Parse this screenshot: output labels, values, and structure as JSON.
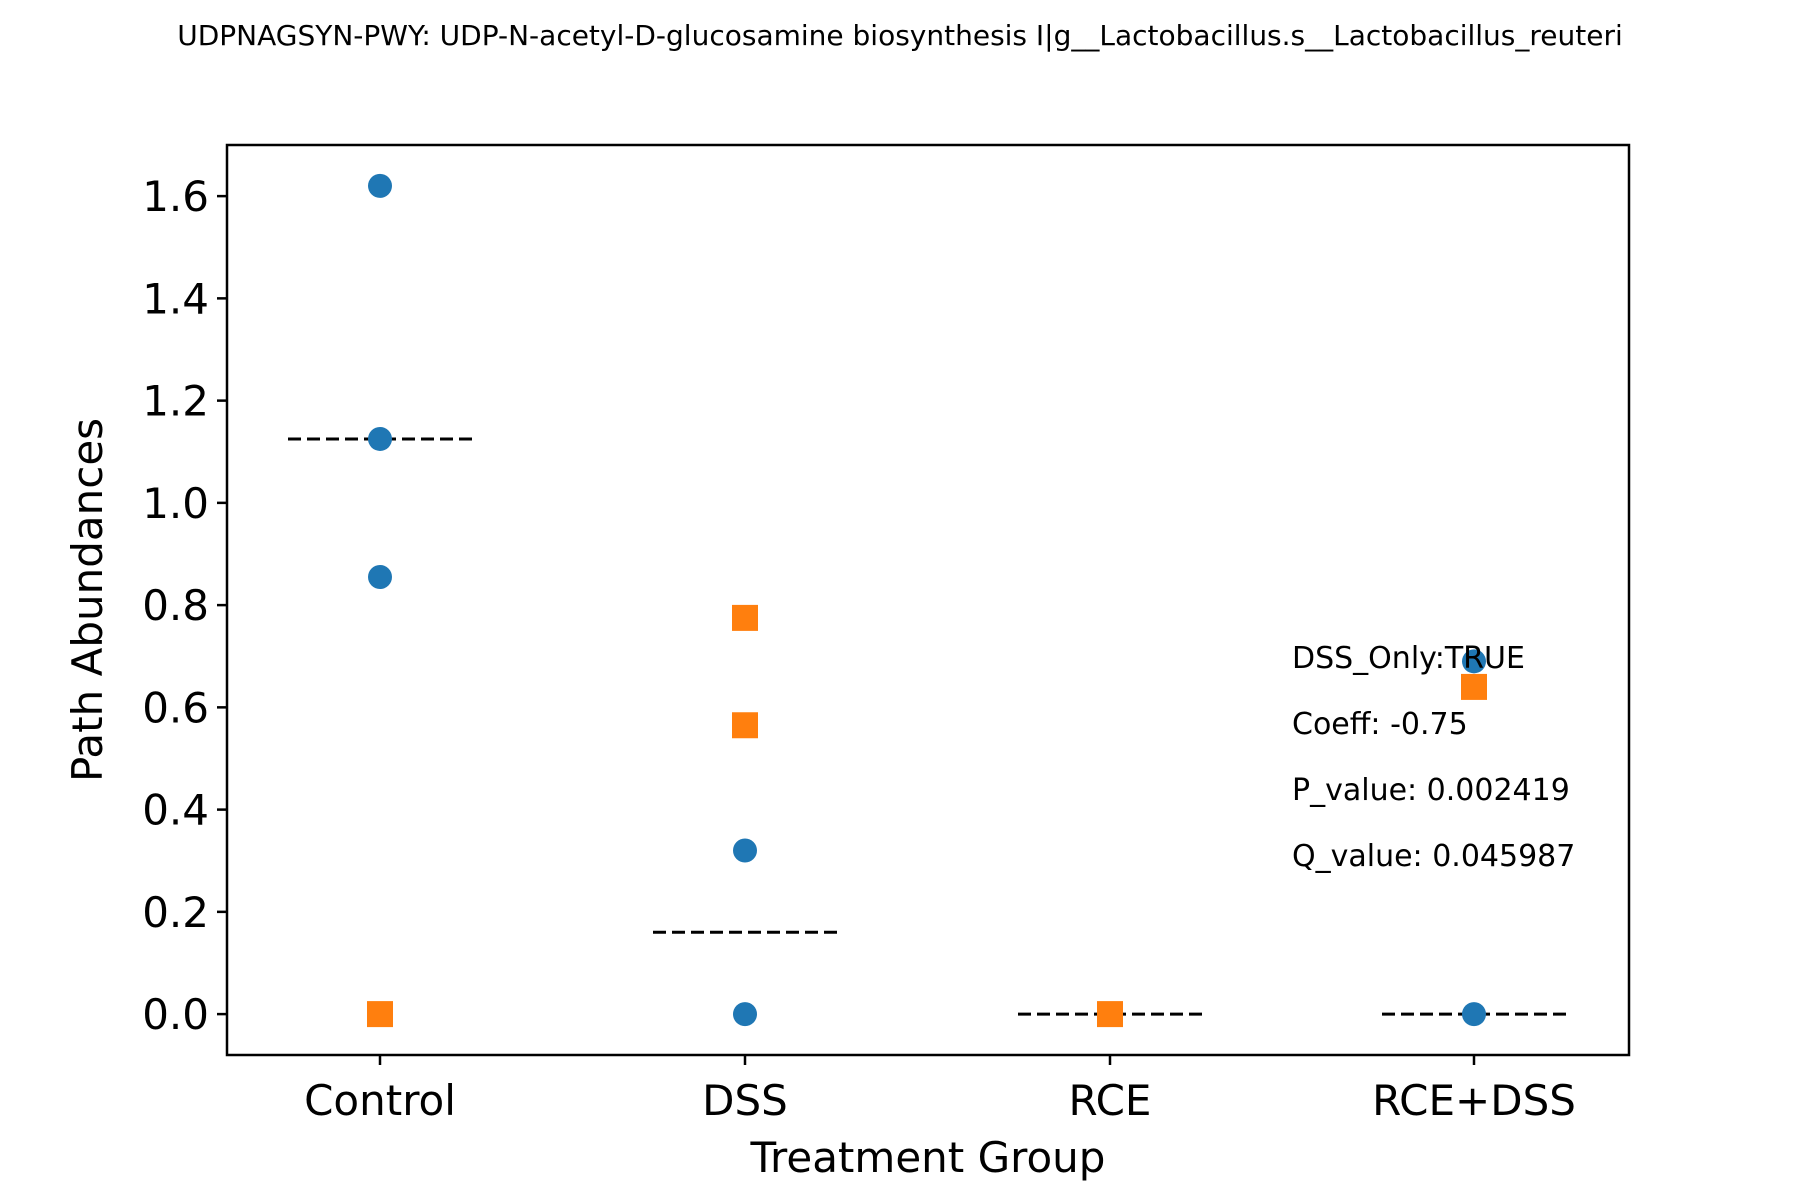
{
  "chart_data": {
    "type": "scatter",
    "title": "UDPNAGSYN-PWY: UDP-N-acetyl-D-glucosamine biosynthesis I|g__Lactobacillus.s__Lactobacillus_reuteri",
    "xlabel": "Treatment Group",
    "ylabel": "Path Abundances",
    "categories": [
      "Control",
      "DSS",
      "RCE",
      "RCE+DSS"
    ],
    "ylim": [
      -0.08,
      1.7
    ],
    "yticks": [
      "0.0",
      "0.2",
      "0.4",
      "0.6",
      "0.8",
      "1.0",
      "1.2",
      "1.4",
      "1.6"
    ],
    "ytick_values": [
      0.0,
      0.2,
      0.4,
      0.6,
      0.8,
      1.0,
      1.2,
      1.4,
      1.6
    ],
    "grid": false,
    "series": [
      {
        "marker": "circle",
        "color": "#1f77b4",
        "points": [
          {
            "category": "Control",
            "y": 1.62
          },
          {
            "category": "Control",
            "y": 1.125
          },
          {
            "category": "Control",
            "y": 0.855
          },
          {
            "category": "DSS",
            "y": 0.32
          },
          {
            "category": "DSS",
            "y": 0.0
          },
          {
            "category": "RCE+DSS",
            "y": 0.69
          },
          {
            "category": "RCE+DSS",
            "y": 0.0
          }
        ]
      },
      {
        "marker": "square",
        "color": "#ff7f0e",
        "points": [
          {
            "category": "Control",
            "y": 0.0
          },
          {
            "category": "DSS",
            "y": 0.775
          },
          {
            "category": "DSS",
            "y": 0.565
          },
          {
            "category": "RCE",
            "y": 0.0
          },
          {
            "category": "RCE+DSS",
            "y": 0.64
          }
        ]
      }
    ],
    "means": [
      {
        "category": "Control",
        "y": 1.125
      },
      {
        "category": "DSS",
        "y": 0.16
      },
      {
        "category": "RCE",
        "y": 0.0
      },
      {
        "category": "RCE+DSS",
        "y": 0.0
      }
    ],
    "annotations": [
      "DSS_Only:TRUE",
      "Coeff: -0.75",
      "P_value: 0.002419",
      "Q_value: 0.045987"
    ]
  }
}
